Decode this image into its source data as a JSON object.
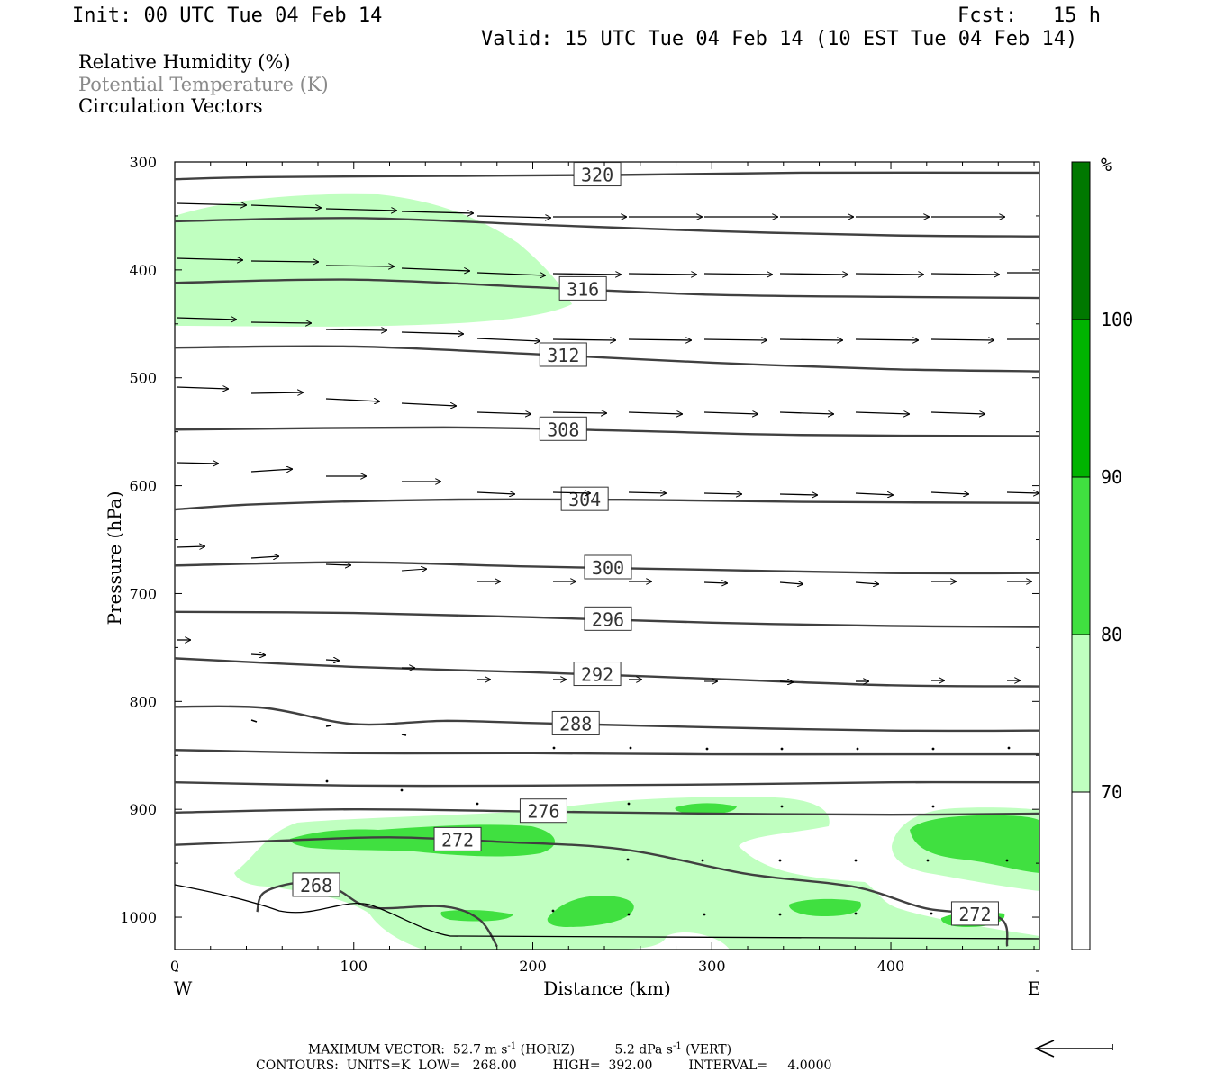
{
  "header": {
    "init": "Init: 00 UTC Tue 04 Feb 14",
    "fcst_label": "Fcst:",
    "fcst_value": "15 h",
    "valid": "Valid: 15 UTC Tue 04 Feb 14 (10 EST Tue 04 Feb 14)"
  },
  "legend": {
    "rh": "Relative Humidity (%)",
    "theta": "Potential Temperature (K)",
    "vectors": "Circulation Vectors"
  },
  "colors": {
    "rh70": "#c0ffc0",
    "rh80": "#40e040",
    "rh90": "#00b400",
    "rh100": "#007800",
    "contour": "#404040"
  },
  "chart_data": {
    "type": "contour",
    "xlabel": "Distance (km)",
    "ylabel": "Pressure (hPa)",
    "xlim": [
      0,
      483
    ],
    "ylim": [
      300,
      1030
    ],
    "x_ticks": [
      0,
      100,
      200,
      300,
      400
    ],
    "y_ticks": [
      300,
      400,
      500,
      600,
      700,
      800,
      900,
      1000
    ],
    "x_end_labels": {
      "left": "W",
      "right": "E"
    },
    "colorbar": {
      "unit": "%",
      "levels": [
        70,
        80,
        90,
        100
      ],
      "colors": [
        "#ffffff",
        "#c0ffc0",
        "#40e040",
        "#00b400",
        "#007800"
      ]
    },
    "theta_contours": [
      {
        "label": "320",
        "points": [
          [
            0,
            316
          ],
          [
            50,
            314
          ],
          [
            150,
            313
          ],
          [
            250,
            312
          ],
          [
            350,
            310
          ],
          [
            483,
            310
          ]
        ]
      },
      {
        "label": "",
        "points": [
          [
            0,
            355
          ],
          [
            100,
            352
          ],
          [
            200,
            358
          ],
          [
            300,
            364
          ],
          [
            400,
            368
          ],
          [
            483,
            369
          ]
        ]
      },
      {
        "label": "316",
        "points": [
          [
            0,
            412
          ],
          [
            100,
            409
          ],
          [
            200,
            416
          ],
          [
            300,
            423
          ],
          [
            400,
            425
          ],
          [
            483,
            426
          ]
        ]
      },
      {
        "label": "312",
        "points": [
          [
            0,
            472
          ],
          [
            100,
            471
          ],
          [
            200,
            478
          ],
          [
            300,
            486
          ],
          [
            400,
            492
          ],
          [
            483,
            494
          ]
        ]
      },
      {
        "label": "308",
        "points": [
          [
            0,
            548
          ],
          [
            150,
            546
          ],
          [
            250,
            549
          ],
          [
            350,
            553
          ],
          [
            483,
            554
          ]
        ]
      },
      {
        "label": "304",
        "points": [
          [
            0,
            622
          ],
          [
            50,
            617
          ],
          [
            150,
            613
          ],
          [
            250,
            613
          ],
          [
            350,
            615
          ],
          [
            483,
            616
          ]
        ]
      },
      {
        "label": "300",
        "points": [
          [
            0,
            674
          ],
          [
            100,
            671
          ],
          [
            200,
            675
          ],
          [
            300,
            678
          ],
          [
            400,
            681
          ],
          [
            483,
            681
          ]
        ]
      },
      {
        "label": "296",
        "points": [
          [
            0,
            717
          ],
          [
            100,
            718
          ],
          [
            200,
            722
          ],
          [
            300,
            727
          ],
          [
            400,
            730
          ],
          [
            483,
            731
          ]
        ]
      },
      {
        "label": "292",
        "points": [
          [
            0,
            760
          ],
          [
            100,
            768
          ],
          [
            200,
            773
          ],
          [
            300,
            779
          ],
          [
            400,
            785
          ],
          [
            483,
            786
          ]
        ]
      },
      {
        "label": "288",
        "points": [
          [
            0,
            805
          ],
          [
            50,
            806
          ],
          [
            100,
            821
          ],
          [
            150,
            818
          ],
          [
            200,
            820
          ],
          [
            300,
            824
          ],
          [
            400,
            827
          ],
          [
            483,
            827
          ]
        ]
      },
      {
        "label": "",
        "points": [
          [
            0,
            845
          ],
          [
            100,
            848
          ],
          [
            200,
            848
          ],
          [
            300,
            849
          ],
          [
            400,
            849
          ],
          [
            483,
            849
          ]
        ]
      },
      {
        "label": "",
        "points": [
          [
            0,
            875
          ],
          [
            100,
            878
          ],
          [
            200,
            878
          ],
          [
            300,
            877
          ],
          [
            400,
            875
          ],
          [
            483,
            875
          ]
        ]
      },
      {
        "label": "276",
        "points": [
          [
            0,
            903
          ],
          [
            100,
            900
          ],
          [
            200,
            902
          ],
          [
            300,
            904
          ],
          [
            400,
            905
          ],
          [
            483,
            904
          ]
        ]
      },
      {
        "label": "272",
        "points": [
          [
            0,
            933
          ],
          [
            60,
            929
          ],
          [
            120,
            926
          ],
          [
            180,
            930
          ],
          [
            250,
            937
          ],
          [
            320,
            960
          ],
          [
            380,
            972
          ],
          [
            420,
            992
          ],
          [
            460,
            1000
          ],
          [
            465,
            1027
          ]
        ]
      },
      {
        "label": "268",
        "points": [
          [
            46,
            995
          ],
          [
            50,
            977
          ],
          [
            70,
            968
          ],
          [
            90,
            974
          ],
          [
            110,
            991
          ],
          [
            150,
            990
          ],
          [
            170,
            1002
          ],
          [
            180,
            1027
          ]
        ]
      }
    ],
    "vector_max": {
      "text_pre": "MAXIMUM VECTOR:  52.7 m s",
      "text_mid": " (HORIZ)          5.2 dPa s",
      "text_post": " (VERT)",
      "sup": "-1"
    },
    "contour_info": "CONTOURS:  UNITS=K  LOW=   268.00         HIGH=  392.00         INTERVAL=     4.0000"
  }
}
